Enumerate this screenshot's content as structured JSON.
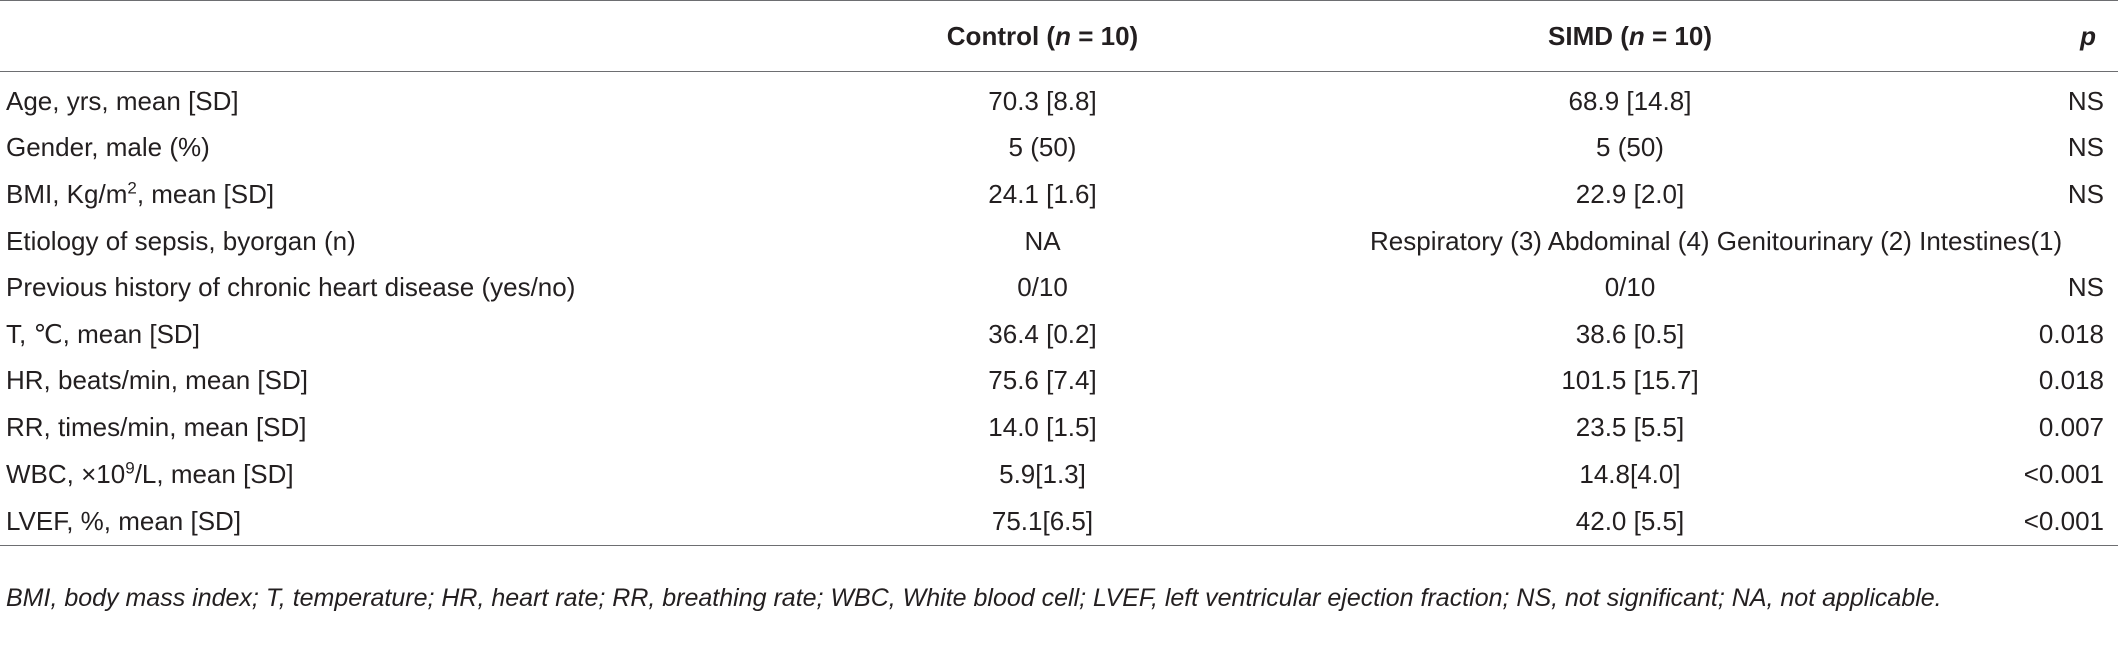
{
  "table": {
    "headers": {
      "label": "",
      "control": "Control (n = 10)",
      "simd": "SIMD (n = 10)",
      "p": "p"
    },
    "rows": [
      {
        "label": "Age, yrs, mean [SD]",
        "control": "70.3 [8.8]",
        "simd": "68.9 [14.8]",
        "p": "NS"
      },
      {
        "label": "Gender, male (%)",
        "control": "5 (50)",
        "simd": "5 (50)",
        "p": "NS"
      },
      {
        "label": "BMI, Kg/m2, mean [SD]",
        "control": "24.1 [1.6]",
        "simd": "22.9 [2.0]",
        "p": "NS"
      },
      {
        "label": "Etiology of sepsis, byorgan (n)",
        "control": "NA",
        "simd": "Respiratory (3) Abdominal (4) Genitourinary (2) Intestines(1)",
        "p": ""
      },
      {
        "label": "Previous history of chronic heart disease (yes/no)",
        "control": "0/10",
        "simd": "0/10",
        "p": "NS"
      },
      {
        "label": "T, ℃, mean [SD]",
        "control": "36.4 [0.2]",
        "simd": "38.6 [0.5]",
        "p": "0.018"
      },
      {
        "label": "HR, beats/min, mean [SD]",
        "control": "75.6 [7.4]",
        "simd": "101.5 [15.7]",
        "p": "0.018"
      },
      {
        "label": "RR, times/min, mean [SD]",
        "control": "14.0 [1.5]",
        "simd": "23.5 [5.5]",
        "p": "0.007"
      },
      {
        "label": "WBC, ×109/L, mean [SD]",
        "control": "5.9[1.3]",
        "simd": "14.8[4.0]",
        "p": "<0.001"
      },
      {
        "label": "LVEF, %, mean [SD]",
        "control": "75.1[6.5]",
        "simd": "42.0 [5.5]",
        "p": "<0.001"
      }
    ],
    "label_parts": {
      "bmi_pre": "BMI, Kg/m",
      "bmi_sup": "2",
      "bmi_post": ", mean [SD]",
      "wbc_pre": "WBC, ×10",
      "wbc_sup": "9",
      "wbc_post": "/L, mean [SD]"
    },
    "header_parts": {
      "control_pre": "Control (",
      "control_n": "n",
      "control_post": " = 10)",
      "simd_pre": "SIMD (",
      "simd_n": "n",
      "simd_post": " = 10)"
    }
  },
  "footnote": "BMI, body mass index; T, temperature; HR, heart rate; RR, breathing rate; WBC, White blood cell; LVEF, left ventricular ejection fraction; NS, not significant; NA, not applicable."
}
